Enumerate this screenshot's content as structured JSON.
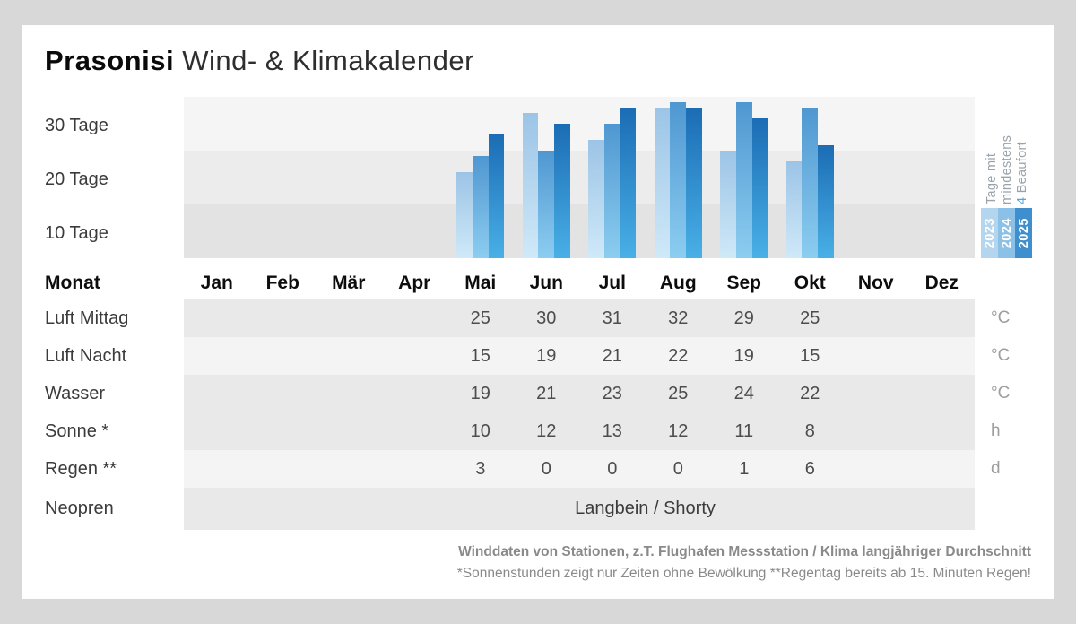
{
  "header": {
    "location": "Prasonisi",
    "subtitle": "Wind- & Klimakalender"
  },
  "chart_data": {
    "type": "bar",
    "title": "Tage mit mindestens 4 Beaufort",
    "ylabel": "Tage",
    "ylim": [
      0,
      30
    ],
    "y_axis_labels": [
      "30 Tage",
      "20 Tage",
      "10 Tage"
    ],
    "grid": "horizontal-bands",
    "legend_position": "right",
    "categories": [
      "Jan",
      "Feb",
      "Mär",
      "Apr",
      "Mai",
      "Jun",
      "Jul",
      "Aug",
      "Sep",
      "Okt",
      "Nov",
      "Dez"
    ],
    "series": [
      {
        "name": "2023",
        "color_top": "#9cc4e6",
        "color_bottom": "#cfe9f8",
        "legend_color": "#b3d5ee",
        "values": [
          null,
          null,
          null,
          null,
          16,
          27,
          22,
          28,
          20,
          18,
          null,
          null
        ]
      },
      {
        "name": "2024",
        "color_top": "#4f97d1",
        "color_bottom": "#8ccdf0",
        "legend_color": "#8cc1e7",
        "values": [
          null,
          null,
          null,
          null,
          19,
          20,
          25,
          29,
          29,
          28,
          null,
          null
        ]
      },
      {
        "name": "2025",
        "color_top": "#1b6cb4",
        "color_bottom": "#49b0e6",
        "legend_color": "#3f8fce",
        "values": [
          null,
          null,
          null,
          null,
          23,
          25,
          28,
          28,
          26,
          21,
          null,
          null
        ]
      }
    ],
    "legend_label": {
      "line1": "Tage mit",
      "line2": "mindestens",
      "number": "4",
      "unit": "Beaufort",
      "number_color": "#52a5dc"
    }
  },
  "table": {
    "month_header": "Monat",
    "rows": [
      {
        "label": "Luft Mittag",
        "unit": "°C",
        "values": [
          null,
          null,
          null,
          null,
          "25",
          "30",
          "31",
          "32",
          "29",
          "25",
          null,
          null
        ]
      },
      {
        "label": "Luft Nacht",
        "unit": "°C",
        "values": [
          null,
          null,
          null,
          null,
          "15",
          "19",
          "21",
          "22",
          "19",
          "15",
          null,
          null
        ]
      },
      {
        "label": "Wasser",
        "unit": "°C",
        "values": [
          null,
          null,
          null,
          null,
          "19",
          "21",
          "23",
          "25",
          "24",
          "22",
          null,
          null
        ]
      },
      {
        "label": "Sonne *",
        "unit": "h",
        "values": [
          null,
          null,
          null,
          null,
          "10",
          "12",
          "13",
          "12",
          "11",
          "8",
          null,
          null
        ]
      },
      {
        "label": "Regen **",
        "unit": "d",
        "values": [
          null,
          null,
          null,
          null,
          "3",
          "0",
          "0",
          "0",
          "1",
          "6",
          null,
          null
        ]
      },
      {
        "label": "Neopren",
        "unit": "",
        "span_value": "Langbein / Shorty"
      }
    ]
  },
  "footer": {
    "line1": "Winddaten von Stationen, z.T. Flughafen Messstation / Klima langjähriger Durchschnitt",
    "line2": "*Sonnenstunden zeigt nur Zeiten ohne Bewölkung  **Regentag bereits ab 15. Minuten Regen!"
  }
}
